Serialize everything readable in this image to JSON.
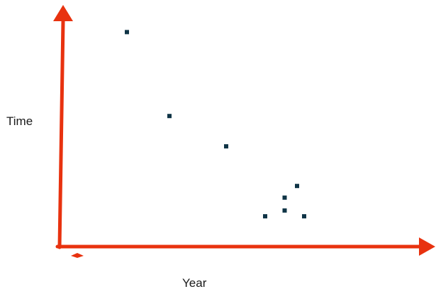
{
  "chart_data": {
    "type": "scatter",
    "title": "",
    "xlabel": "Year",
    "ylabel": "Time",
    "xlim": [
      0,
      10
    ],
    "ylim": [
      0,
      10
    ],
    "grid": false,
    "axis_color": "#e8320f",
    "point_color": "#0f3446",
    "points": [
      {
        "x": 1.9,
        "y": 9.2
      },
      {
        "x": 3.1,
        "y": 5.6
      },
      {
        "x": 4.7,
        "y": 4.3
      },
      {
        "x": 5.8,
        "y": 1.3
      },
      {
        "x": 6.35,
        "y": 2.1
      },
      {
        "x": 6.35,
        "y": 1.55
      },
      {
        "x": 6.7,
        "y": 2.6
      },
      {
        "x": 6.9,
        "y": 1.3
      }
    ]
  }
}
